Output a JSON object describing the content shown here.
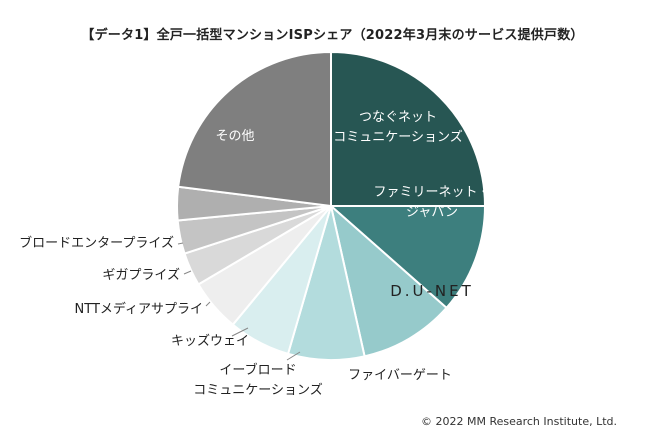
{
  "chart_data": {
    "type": "pie",
    "title": "【データ1】全戸一括型マンションISPシェア（2022年3月末のサービス提供戸数）",
    "slices": [
      {
        "label": [
          "つなぐネット",
          "コミュニケーションズ"
        ],
        "value": 25.0,
        "color": "#275653"
      },
      {
        "label": [
          "ファミリーネット・",
          "ジャパン"
        ],
        "value": 11.5,
        "color": "#3d7f7e"
      },
      {
        "label": [
          "D.U-NET"
        ],
        "value": 10.0,
        "color": "#96cacb"
      },
      {
        "label": [
          "ファイバーゲート"
        ],
        "value": 8.0,
        "color": "#b3dcdd"
      },
      {
        "label": [
          "イーブロード",
          "コミュニケーションズ"
        ],
        "value": 6.5,
        "color": "#d9eeef"
      },
      {
        "label": [
          "キッズウェイ"
        ],
        "value": 5.5,
        "color": "#eeeeee"
      },
      {
        "label": [
          "NTTメディアサプライ"
        ],
        "value": 3.5,
        "color": "#d9d9d9"
      },
      {
        "label": [
          "ギガプライズ"
        ],
        "value": 3.5,
        "color": "#c4c4c4"
      },
      {
        "label": [
          "ブロードエンタープライズ"
        ],
        "value": 3.5,
        "color": "#afafaf"
      },
      {
        "label": [
          "その他"
        ],
        "value": 23.0,
        "color": "#7f7f7f"
      }
    ]
  },
  "credit": "© 2022  MM Research Institute, Ltd."
}
